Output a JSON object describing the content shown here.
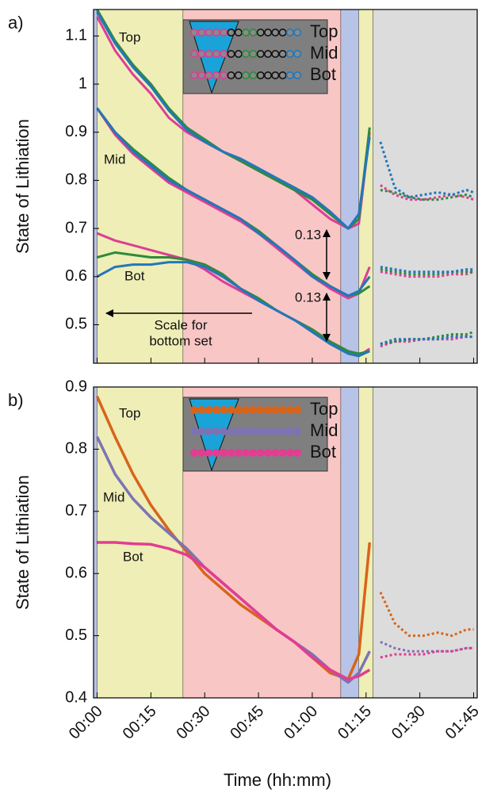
{
  "chart_data": [
    {
      "type": "line",
      "panel_label": "a)",
      "ylabel": "State of Lithiation",
      "xlim": [
        -1,
        106
      ],
      "ylim": [
        0.42,
        1.155
      ],
      "yticks": [
        0.5,
        0.6,
        0.7,
        0.8,
        0.9,
        1,
        1.1
      ],
      "regions": [
        {
          "from": -1,
          "to": 0,
          "color": "#b8c3e8"
        },
        {
          "from": 0,
          "to": 24,
          "color": "#eeeeb6"
        },
        {
          "from": 24,
          "to": 68,
          "color": "#f9c6c6"
        },
        {
          "from": 68,
          "to": 73,
          "color": "#b8c3e8"
        },
        {
          "from": 73,
          "to": 77,
          "color": "#eeeeb6"
        },
        {
          "from": 77,
          "to": 106,
          "color": "#dcdcdc"
        }
      ],
      "legend": [
        "Top",
        "Mid",
        "Bot"
      ],
      "annotations": [
        "Top",
        "Mid",
        "Bot",
        "0.13",
        "0.13",
        "Scale for",
        "bottom set"
      ],
      "series": [
        {
          "color": "#dd3d96",
          "style": "solid",
          "x": [
            0,
            5,
            10,
            15,
            20,
            25,
            30,
            35,
            40,
            45,
            50,
            55,
            60,
            65,
            70,
            73,
            76
          ],
          "values": [
            1.14,
            1.07,
            1.02,
            0.98,
            0.93,
            0.9,
            0.88,
            0.86,
            0.84,
            0.82,
            0.8,
            0.78,
            0.75,
            0.72,
            0.7,
            0.71,
            0.9
          ]
        },
        {
          "color": "#2f8a3c",
          "style": "solid",
          "x": [
            0,
            5,
            10,
            15,
            20,
            25,
            30,
            35,
            40,
            45,
            50,
            55,
            60,
            65,
            70,
            73,
            76
          ],
          "values": [
            1.155,
            1.09,
            1.04,
            1.0,
            0.95,
            0.91,
            0.885,
            0.86,
            0.84,
            0.82,
            0.8,
            0.78,
            0.76,
            0.73,
            0.7,
            0.72,
            0.91
          ]
        },
        {
          "color": "#2277bb",
          "style": "solid",
          "x": [
            0,
            5,
            10,
            15,
            20,
            25,
            30,
            35,
            40,
            45,
            50,
            55,
            60,
            65,
            70,
            73,
            76
          ],
          "values": [
            1.15,
            1.085,
            1.035,
            0.995,
            0.945,
            0.905,
            0.88,
            0.86,
            0.845,
            0.825,
            0.805,
            0.785,
            0.765,
            0.735,
            0.7,
            0.73,
            0.89
          ]
        },
        {
          "color": "#dd3d96",
          "style": "solid",
          "x": [
            0,
            5,
            10,
            15,
            20,
            25,
            30,
            35,
            40,
            45,
            50,
            55,
            60,
            65,
            70,
            73,
            76
          ],
          "values": [
            0.95,
            0.895,
            0.855,
            0.825,
            0.795,
            0.775,
            0.755,
            0.735,
            0.715,
            0.69,
            0.66,
            0.63,
            0.6,
            0.575,
            0.555,
            0.565,
            0.62
          ]
        },
        {
          "color": "#2f8a3c",
          "style": "solid",
          "x": [
            0,
            5,
            10,
            15,
            20,
            25,
            30,
            35,
            40,
            45,
            50,
            55,
            60,
            65,
            70,
            73,
            76
          ],
          "values": [
            0.95,
            0.9,
            0.865,
            0.835,
            0.805,
            0.78,
            0.76,
            0.74,
            0.72,
            0.695,
            0.665,
            0.635,
            0.605,
            0.58,
            0.56,
            0.565,
            0.58
          ]
        },
        {
          "color": "#2277bb",
          "style": "solid",
          "x": [
            0,
            5,
            10,
            15,
            20,
            25,
            30,
            35,
            40,
            45,
            50,
            55,
            60,
            65,
            70,
            73,
            76
          ],
          "values": [
            0.95,
            0.9,
            0.86,
            0.83,
            0.8,
            0.78,
            0.76,
            0.74,
            0.72,
            0.69,
            0.665,
            0.635,
            0.6,
            0.58,
            0.56,
            0.57,
            0.6
          ]
        },
        {
          "color": "#dd3d96",
          "style": "solid",
          "x": [
            0,
            5,
            10,
            15,
            20,
            25,
            30,
            35,
            40,
            45,
            50,
            55,
            60,
            65,
            70,
            73,
            76
          ],
          "values": [
            0.69,
            0.675,
            0.665,
            0.655,
            0.645,
            0.635,
            0.615,
            0.59,
            0.57,
            0.55,
            0.53,
            0.51,
            0.49,
            0.465,
            0.44,
            0.435,
            0.45
          ]
        },
        {
          "color": "#2f8a3c",
          "style": "solid",
          "x": [
            0,
            5,
            10,
            15,
            20,
            25,
            30,
            35,
            40,
            45,
            50,
            55,
            60,
            65,
            70,
            73,
            76
          ],
          "values": [
            0.64,
            0.65,
            0.645,
            0.64,
            0.64,
            0.635,
            0.625,
            0.605,
            0.575,
            0.555,
            0.53,
            0.51,
            0.49,
            0.465,
            0.445,
            0.44,
            0.445
          ]
        },
        {
          "color": "#2277bb",
          "style": "solid",
          "x": [
            0,
            5,
            10,
            15,
            20,
            25,
            30,
            35,
            40,
            45,
            50,
            55,
            60,
            65,
            70,
            73,
            76
          ],
          "values": [
            0.6,
            0.62,
            0.625,
            0.625,
            0.63,
            0.63,
            0.62,
            0.6,
            0.575,
            0.55,
            0.53,
            0.51,
            0.485,
            0.46,
            0.44,
            0.435,
            0.445
          ]
        },
        {
          "color": "#dd3d96",
          "style": "dotted",
          "x": [
            79,
            83,
            87,
            91,
            95,
            99,
            103,
            105
          ],
          "values": [
            0.79,
            0.77,
            0.76,
            0.76,
            0.765,
            0.77,
            0.765,
            0.76
          ]
        },
        {
          "color": "#2f8a3c",
          "style": "dotted",
          "x": [
            79,
            83,
            87,
            91,
            95,
            99,
            103,
            105
          ],
          "values": [
            0.78,
            0.775,
            0.765,
            0.76,
            0.76,
            0.765,
            0.77,
            0.765
          ]
        },
        {
          "color": "#2277bb",
          "style": "dotted",
          "x": [
            79,
            83,
            87,
            91,
            95,
            99,
            103,
            105
          ],
          "values": [
            0.88,
            0.785,
            0.765,
            0.77,
            0.775,
            0.77,
            0.78,
            0.775
          ]
        },
        {
          "color": "#dd3d96",
          "style": "dotted",
          "x": [
            79,
            83,
            87,
            91,
            95,
            99,
            103,
            105
          ],
          "values": [
            0.61,
            0.605,
            0.6,
            0.6,
            0.6,
            0.605,
            0.605,
            0.61
          ]
        },
        {
          "color": "#2f8a3c",
          "style": "dotted",
          "x": [
            79,
            83,
            87,
            91,
            95,
            99,
            103,
            105
          ],
          "values": [
            0.615,
            0.61,
            0.605,
            0.605,
            0.605,
            0.61,
            0.61,
            0.61
          ]
        },
        {
          "color": "#2277bb",
          "style": "dotted",
          "x": [
            79,
            83,
            87,
            91,
            95,
            99,
            103,
            105
          ],
          "values": [
            0.62,
            0.615,
            0.61,
            0.61,
            0.61,
            0.61,
            0.615,
            0.615
          ]
        },
        {
          "color": "#dd3d96",
          "style": "dotted",
          "x": [
            79,
            83,
            87,
            91,
            95,
            99,
            103,
            105
          ],
          "values": [
            0.455,
            0.465,
            0.465,
            0.47,
            0.47,
            0.47,
            0.475,
            0.475
          ]
        },
        {
          "color": "#2f8a3c",
          "style": "dotted",
          "x": [
            79,
            83,
            87,
            91,
            95,
            99,
            103,
            105
          ],
          "values": [
            0.46,
            0.465,
            0.47,
            0.47,
            0.475,
            0.48,
            0.48,
            0.485
          ]
        },
        {
          "color": "#2277bb",
          "style": "dotted",
          "x": [
            79,
            83,
            87,
            91,
            95,
            99,
            103,
            105
          ],
          "values": [
            0.46,
            0.47,
            0.47,
            0.47,
            0.47,
            0.475,
            0.475,
            0.475
          ]
        }
      ]
    },
    {
      "type": "line",
      "panel_label": "b)",
      "ylabel": "State of Lithiation",
      "xlabel": "Time (hh:mm)",
      "xlim": [
        -1,
        106
      ],
      "xticks": [
        {
          "value": 0,
          "label": "00:00"
        },
        {
          "value": 15,
          "label": "00:15"
        },
        {
          "value": 30,
          "label": "00:30"
        },
        {
          "value": 45,
          "label": "00:45"
        },
        {
          "value": 60,
          "label": "01:00"
        },
        {
          "value": 75,
          "label": "01:15"
        },
        {
          "value": 90,
          "label": "01:30"
        },
        {
          "value": 105,
          "label": "01:45"
        }
      ],
      "ylim": [
        0.4,
        0.9
      ],
      "yticks": [
        0.4,
        0.5,
        0.6,
        0.7,
        0.8,
        0.9
      ],
      "regions": [
        {
          "from": -1,
          "to": 0,
          "color": "#b8c3e8"
        },
        {
          "from": 0,
          "to": 24,
          "color": "#eeeeb6"
        },
        {
          "from": 24,
          "to": 68,
          "color": "#f9c6c6"
        },
        {
          "from": 68,
          "to": 73,
          "color": "#b8c3e8"
        },
        {
          "from": 73,
          "to": 77,
          "color": "#eeeeb6"
        },
        {
          "from": 77,
          "to": 106,
          "color": "#dcdcdc"
        }
      ],
      "legend": [
        "Top",
        "Mid",
        "Bot"
      ],
      "annotations": [
        "Top",
        "Mid",
        "Bot"
      ],
      "series": [
        {
          "color": "#d8641b",
          "style": "solid",
          "x": [
            0,
            5,
            10,
            15,
            20,
            25,
            30,
            35,
            40,
            45,
            50,
            55,
            60,
            65,
            70,
            73,
            76
          ],
          "values": [
            0.885,
            0.82,
            0.76,
            0.71,
            0.67,
            0.635,
            0.6,
            0.575,
            0.55,
            0.53,
            0.51,
            0.49,
            0.465,
            0.44,
            0.43,
            0.47,
            0.65
          ]
        },
        {
          "color": "#7c73b4",
          "style": "solid",
          "x": [
            0,
            5,
            10,
            15,
            20,
            25,
            30,
            35,
            40,
            45,
            50,
            55,
            60,
            65,
            70,
            73,
            76
          ],
          "values": [
            0.82,
            0.76,
            0.72,
            0.69,
            0.665,
            0.64,
            0.61,
            0.585,
            0.56,
            0.535,
            0.51,
            0.49,
            0.47,
            0.445,
            0.425,
            0.44,
            0.475
          ]
        },
        {
          "color": "#e23d92",
          "style": "solid",
          "x": [
            0,
            5,
            10,
            15,
            20,
            25,
            30,
            35,
            40,
            45,
            50,
            55,
            60,
            65,
            70,
            73,
            76
          ],
          "values": [
            0.65,
            0.65,
            0.648,
            0.647,
            0.64,
            0.63,
            0.61,
            0.585,
            0.56,
            0.535,
            0.51,
            0.49,
            0.465,
            0.445,
            0.43,
            0.435,
            0.445
          ]
        },
        {
          "color": "#d8641b",
          "style": "dotted",
          "x": [
            79,
            83,
            87,
            91,
            95,
            99,
            103,
            105
          ],
          "values": [
            0.57,
            0.52,
            0.5,
            0.5,
            0.505,
            0.5,
            0.51,
            0.51
          ]
        },
        {
          "color": "#7c73b4",
          "style": "dotted",
          "x": [
            79,
            83,
            87,
            91,
            95,
            99,
            103,
            105
          ],
          "values": [
            0.49,
            0.48,
            0.475,
            0.475,
            0.475,
            0.475,
            0.48,
            0.48
          ]
        },
        {
          "color": "#e23d92",
          "style": "dotted",
          "x": [
            79,
            83,
            87,
            91,
            95,
            99,
            103,
            105
          ],
          "values": [
            0.465,
            0.47,
            0.47,
            0.47,
            0.475,
            0.475,
            0.48,
            0.48
          ]
        }
      ]
    }
  ]
}
